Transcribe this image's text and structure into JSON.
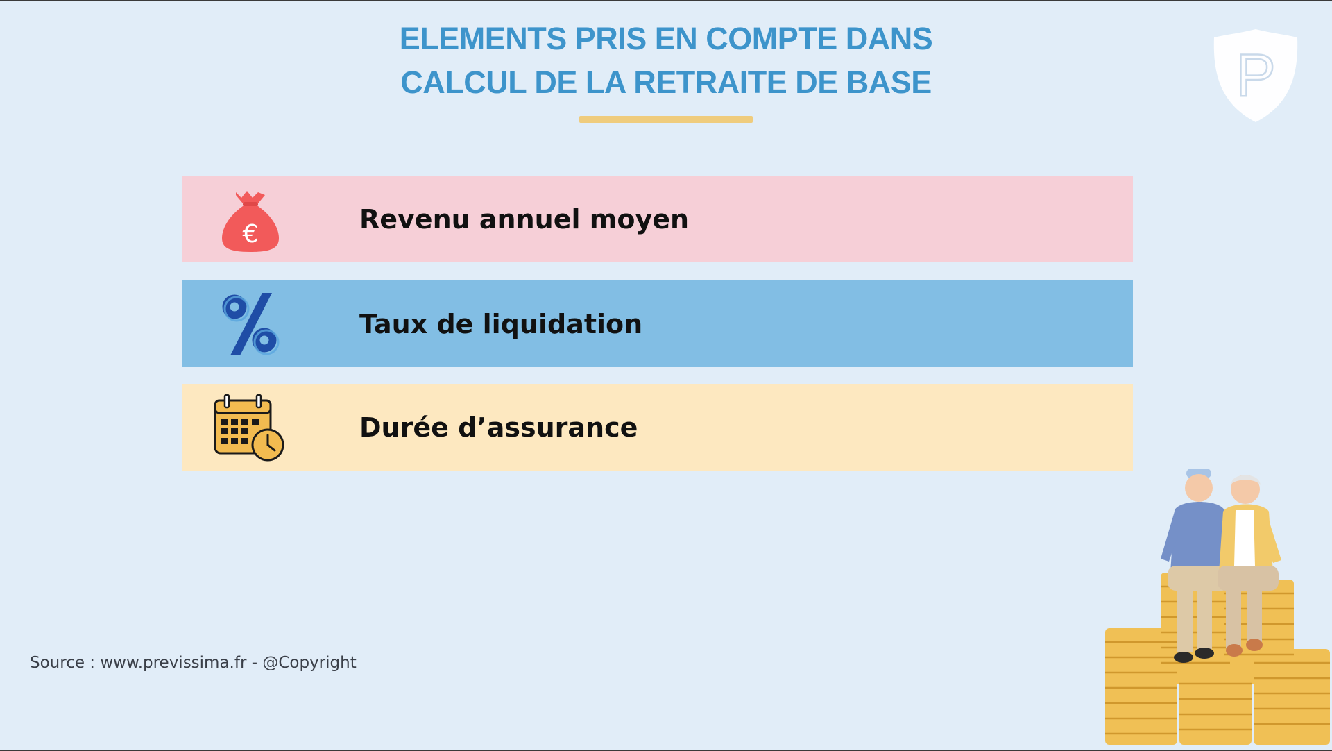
{
  "header": {
    "title_line1": "ELEMENTS PRIS EN COMPTE DANS",
    "title_line2": "CALCUL DE LA RETRAITE DE BASE"
  },
  "logo": {
    "icon": "previssima-shield-logo-icon",
    "letter": "P"
  },
  "items": [
    {
      "label": "Revenu annuel moyen",
      "icon": "money-bag-euro-icon",
      "background": "#f6cfd7",
      "icon_color": "#f25a5a"
    },
    {
      "label": "Taux de liquidation",
      "icon": "percent-icon",
      "background": "#82bee4",
      "icon_color": "#1f4da6"
    },
    {
      "label": "Durée d’assurance",
      "icon": "calendar-clock-icon",
      "background": "#fde8c0",
      "icon_color": "#f2bb50"
    }
  ],
  "footer": {
    "source": "Source : www.previssima.fr - @Copyright"
  },
  "colors": {
    "title": "#3d94cb",
    "accent_underline": "#efcc7d",
    "background": "#e1edf8"
  },
  "illustration": {
    "icon": "retired-couple-on-coins-icon"
  }
}
